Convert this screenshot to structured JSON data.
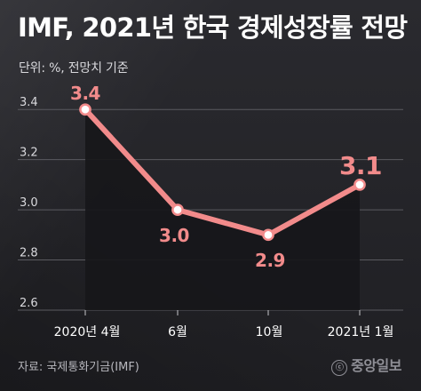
{
  "title": "IMF, 2021년 한국 경제성장률 전망",
  "unit_text": "단위: %, 전망치 기준",
  "source_text": "자료: 국제통화기금(IMF)",
  "brand_text": "중앙일보",
  "brand_mark_text": "ⓒ",
  "chart_data": {
    "type": "line",
    "title": "IMF, 2021년 한국 경제성장률 전망",
    "subtitle": "단위: %, 전망치 기준",
    "x": [
      "2020년 4월",
      "6월",
      "10월",
      "2021년 1월"
    ],
    "series": [
      {
        "values": [
          3.4,
          3.0,
          2.9,
          3.1
        ],
        "value_labels": [
          "3.4",
          "3.0",
          "2.9",
          "3.1"
        ]
      }
    ],
    "y_ticks": [
      2.6,
      2.8,
      3.0,
      3.2,
      3.4
    ],
    "y_tick_labels": [
      "2.6",
      "2.8",
      "3.0",
      "3.2",
      "3.4"
    ],
    "ylim": [
      2.6,
      3.5
    ],
    "grid": true,
    "legend": "none",
    "colors": {
      "line": "#f28b8b",
      "marker_fill": "#ffffff",
      "marker_stroke": "#f28b8b",
      "area": "#17171a",
      "grid": "#5a5a60",
      "x_tick": "#c6c6cb"
    }
  }
}
